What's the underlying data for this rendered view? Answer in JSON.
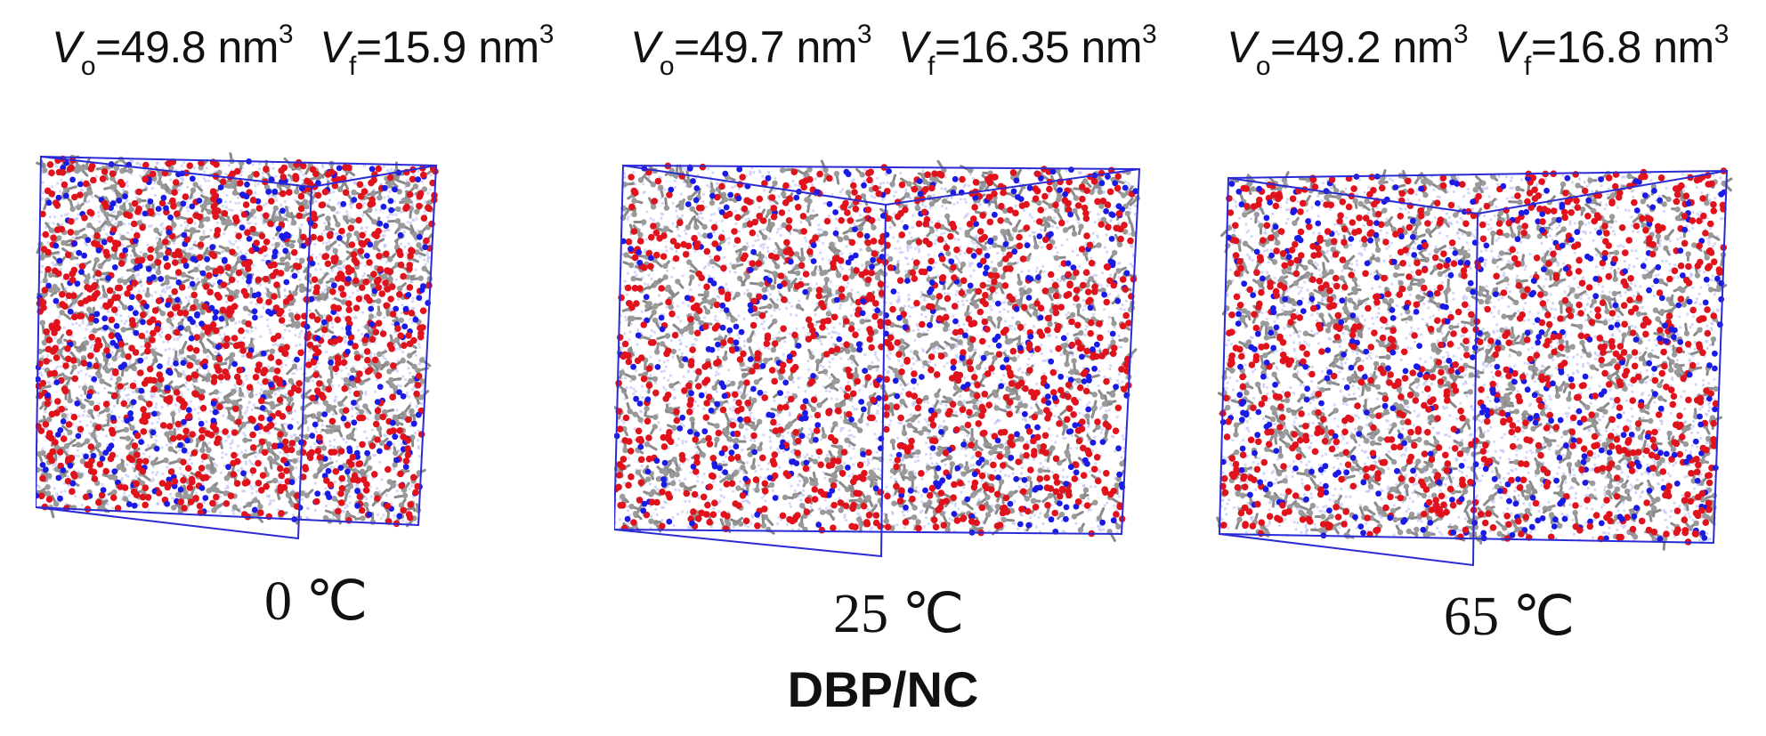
{
  "title": "DBP/NC",
  "panels": [
    {
      "vo_symbol": "V",
      "vo_sub": "o",
      "vo_value": "=49.8 nm",
      "vo_sup": "3",
      "vf_symbol": "V",
      "vf_sub": "f",
      "vf_value": "=15.9 nm",
      "vf_sup": "3",
      "temperature": "0 ℃"
    },
    {
      "vo_symbol": "V",
      "vo_sub": "o",
      "vo_value": "=49.7 nm",
      "vo_sup": "3",
      "vf_symbol": "V",
      "vf_sub": "f",
      "vf_value": "=16.35 nm",
      "vf_sup": "3",
      "temperature": "25 ℃"
    },
    {
      "vo_symbol": "V",
      "vo_sub": "o",
      "vo_value": "=49.2 nm",
      "vo_sup": "3",
      "vf_symbol": "V",
      "vf_sub": "f",
      "vf_value": "=16.8 nm",
      "vf_sup": "3",
      "temperature": "65 ℃"
    }
  ],
  "colors": {
    "box_edge": "#2b2bd6",
    "oxygen": "#e0121c",
    "nitrogen": "#1a1ae6",
    "carbon": "#8a8a8a",
    "hydrogen_haze": "#b9bdf5"
  }
}
